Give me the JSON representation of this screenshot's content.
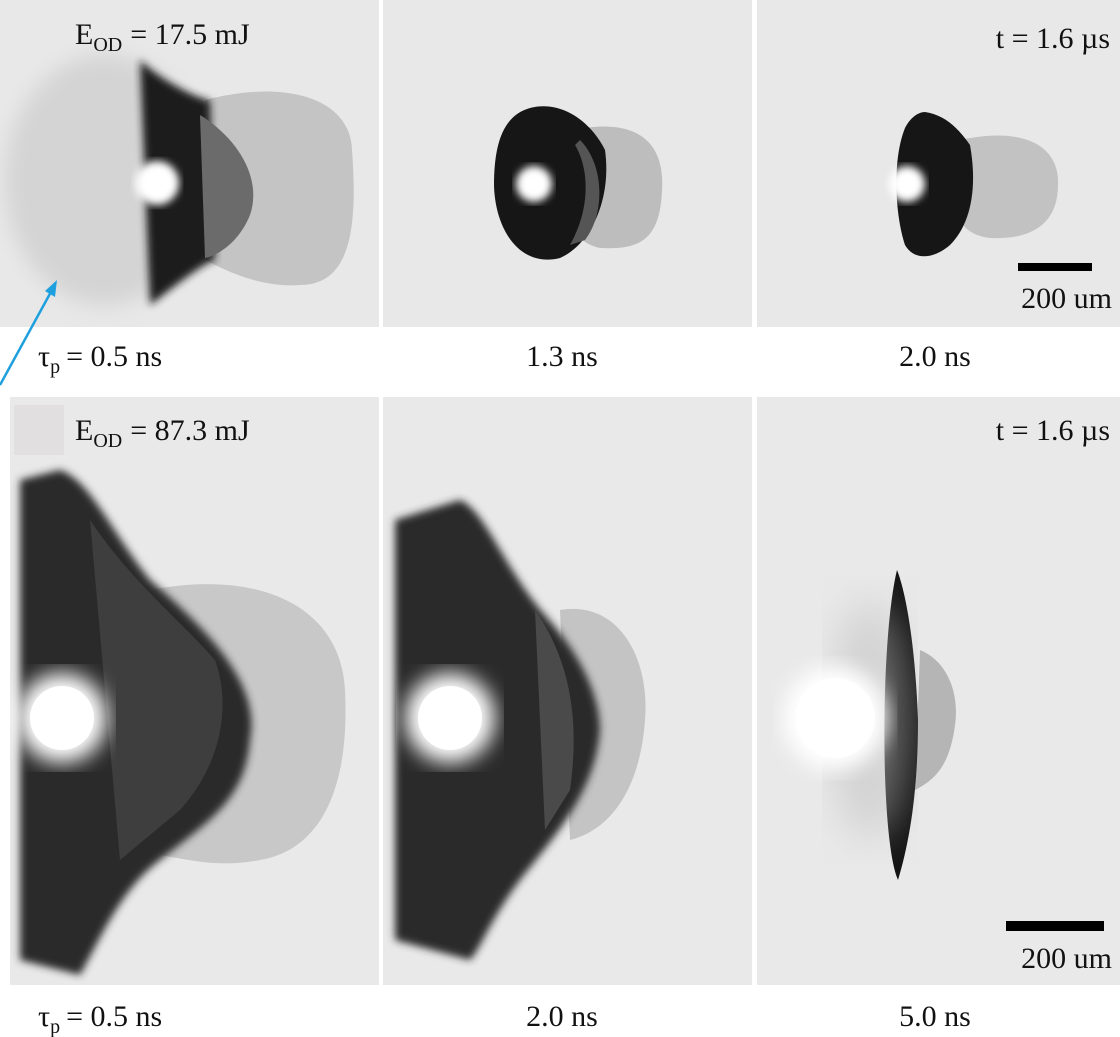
{
  "rows": [
    {
      "energy": {
        "symbol": "E",
        "subscript": "OD",
        "value": "= 17.5 mJ"
      },
      "time": "t = 1.6 µs",
      "scale_bar": "200 um",
      "pulse": {
        "symbol": "τ",
        "subscript": "p",
        "value": "= 0.5 ns"
      },
      "captions": [
        "1.3 ns",
        "2.0 ns"
      ]
    },
    {
      "energy": {
        "symbol": "E",
        "subscript": "OD",
        "value": "= 87.3 mJ"
      },
      "time": "t = 1.6 µs",
      "scale_bar": "200 um",
      "pulse": {
        "symbol": "τ",
        "subscript": "p",
        "value": "= 0.5 ns"
      },
      "captions": [
        "2.0 ns",
        "5.0 ns"
      ]
    }
  ]
}
